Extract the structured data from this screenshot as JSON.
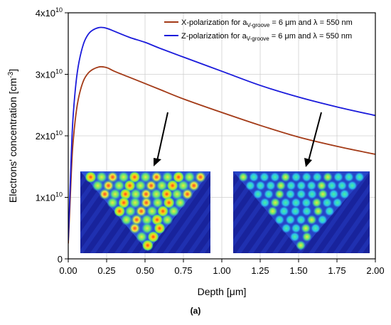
{
  "chart_data": {
    "type": "line",
    "xlabel": "Depth [μm]",
    "ylabel": "Electrons' concentration [cm",
    "ylabel_sup": "-3",
    "ylabel_end": "]",
    "xlim": [
      0,
      2.0
    ],
    "ylim": [
      0,
      40000000000
    ],
    "x_ticks": [
      "0.00",
      "0.25",
      "0.50",
      "0.75",
      "1.00",
      "1.25",
      "1.50",
      "1.75",
      "2.00"
    ],
    "y_ticks": [
      {
        "value": 0,
        "mantissa": "0",
        "exp": ""
      },
      {
        "value": 10000000000,
        "mantissa": "1x10",
        "exp": "10"
      },
      {
        "value": 20000000000,
        "mantissa": "2x10",
        "exp": "10"
      },
      {
        "value": 30000000000,
        "mantissa": "3x10",
        "exp": "10"
      },
      {
        "value": 40000000000,
        "mantissa": "4x10",
        "exp": "10"
      }
    ],
    "grid": true,
    "legend_position": "top-right",
    "series": [
      {
        "name": "X-polarization for a",
        "name_sub": "V-groove",
        "name_tail": " = 6 μm and λ = 550 nm",
        "color": "#a33a17",
        "x": [
          0,
          0.01,
          0.02,
          0.03,
          0.05,
          0.07,
          0.1,
          0.13,
          0.16,
          0.2,
          0.23,
          0.26,
          0.3,
          0.4,
          0.5,
          0.6,
          0.75,
          1.0,
          1.25,
          1.5,
          1.75,
          2.0
        ],
        "y": [
          2500000000.0,
          8000000000.0,
          14000000000.0,
          18500000000.0,
          23500000000.0,
          26500000000.0,
          29000000000.0,
          30200000000.0,
          30800000000.0,
          31200000000.0,
          31200000000.0,
          31000000000.0,
          30500000000.0,
          29500000000.0,
          28500000000.0,
          27500000000.0,
          26000000000.0,
          23800000000.0,
          21700000000.0,
          19800000000.0,
          18300000000.0,
          17000000000.0
        ]
      },
      {
        "name": "Z-polarization for a",
        "name_sub": "V-groove",
        "name_tail": " = 6 μm and λ = 550 nm",
        "color": "#1a1adb",
        "x": [
          0,
          0.01,
          0.02,
          0.03,
          0.05,
          0.07,
          0.1,
          0.13,
          0.16,
          0.2,
          0.23,
          0.26,
          0.3,
          0.4,
          0.5,
          0.6,
          0.75,
          1.0,
          1.25,
          1.5,
          1.75,
          2.0
        ],
        "y": [
          3000000000.0,
          10000000000.0,
          17000000000.0,
          22500000000.0,
          28500000000.0,
          32000000000.0,
          35000000000.0,
          36500000000.0,
          37200000000.0,
          37600000000.0,
          37600000000.0,
          37400000000.0,
          37000000000.0,
          36000000000.0,
          35200000000.0,
          34200000000.0,
          32800000000.0,
          30500000000.0,
          28200000000.0,
          26300000000.0,
          24700000000.0,
          23300000000.0
        ]
      }
    ],
    "insets": [
      {
        "name": "x-polarization field map"
      },
      {
        "name": "z-polarization field map"
      }
    ]
  },
  "caption": "(a)",
  "colors": {
    "inset_background": "#18239c",
    "inset_triangle": "#2c4ddb",
    "axis": "#000000",
    "grid": "#cfcfcf"
  }
}
